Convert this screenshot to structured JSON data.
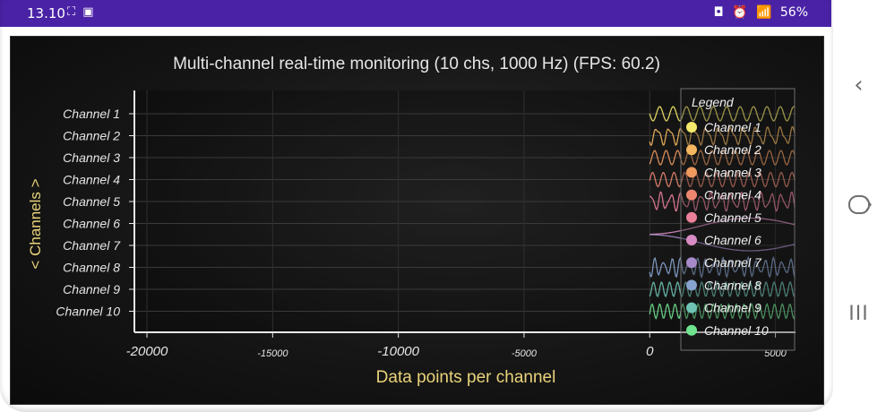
{
  "status_bar": {
    "time": "13.10",
    "left_icons": "⛶ ▣",
    "right_icons": [
      "◘",
      "⏰",
      "📶"
    ],
    "battery": "56%"
  },
  "nav": {
    "back_icon": "‹",
    "recents_icon": "III"
  },
  "chart_data": {
    "type": "line",
    "title": "Multi-channel real-time monitoring (10 chs, 1000 Hz) (FPS: 60.2)",
    "xlabel": "Data points per channel",
    "ylabel": "< Channels >",
    "xlim": [
      -20500,
      5800
    ],
    "x_ticks": [
      {
        "value": -20000,
        "label": "-20000",
        "major": true
      },
      {
        "value": -15000,
        "label": "-15000",
        "major": false
      },
      {
        "value": -10000,
        "label": "-10000",
        "major": true
      },
      {
        "value": -5000,
        "label": "-5000",
        "major": false
      },
      {
        "value": 0,
        "label": "0",
        "major": true
      },
      {
        "value": 5000,
        "label": "5000",
        "major": false
      }
    ],
    "channels": [
      "Channel 1",
      "Channel 2",
      "Channel 3",
      "Channel 4",
      "Channel 5",
      "Channel 6",
      "Channel 7",
      "Channel 8",
      "Channel 9",
      "Channel 10"
    ],
    "colors": [
      "#f4e96a",
      "#f4b75f",
      "#f09a5e",
      "#ec8670",
      "#ea7f9a",
      "#d98cc4",
      "#a68ac9",
      "#87a3cf",
      "#6fc3b4",
      "#6ee28e"
    ],
    "data_start_x": 0,
    "legend": {
      "title": "Legend",
      "position": "right",
      "items": [
        "Channel 1",
        "Channel 2",
        "Channel 3",
        "Channel 4",
        "Channel 5",
        "Channel 6",
        "Channel 7",
        "Channel 8",
        "Channel 9",
        "Channel 10"
      ]
    },
    "grid": true
  }
}
